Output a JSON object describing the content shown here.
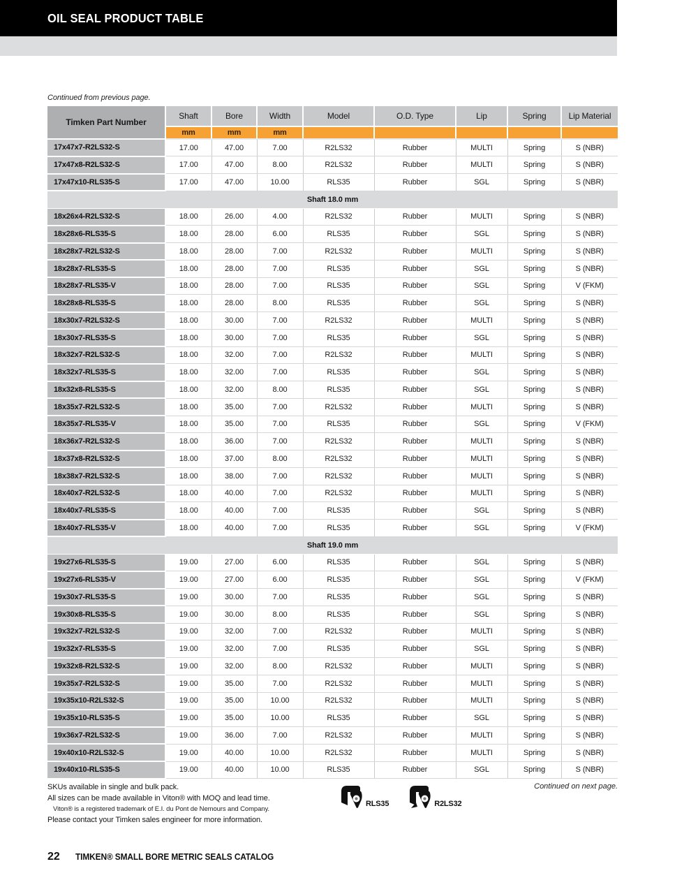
{
  "page": {
    "header_title": "OIL SEAL PRODUCT TABLE",
    "continued_from": "Continued from previous page.",
    "continued_next": "Continued on next page.",
    "page_number": "22",
    "catalog_title": "TIMKEN® SMALL BORE METRIC SEALS CATALOG"
  },
  "colors": {
    "accent_orange": "#F5A134",
    "header_bar_black": "#000000",
    "header_band_gray": "#DCDDDE",
    "column_header_gray": "#C8C9CB",
    "part_header_gray": "#AEAFB1",
    "part_cell_gray": "#BFC0C2",
    "section_row_gray": "#D9DADC"
  },
  "table": {
    "columns": [
      "Timken Part Number",
      "Shaft",
      "Bore",
      "Width",
      "Model",
      "O.D. Type",
      "Lip",
      "Spring",
      "Lip Material"
    ],
    "units": [
      "mm",
      "mm",
      "mm"
    ],
    "rows": [
      {
        "type": "data",
        "cells": [
          "17x47x7-R2LS32-S",
          "17.00",
          "47.00",
          "7.00",
          "R2LS32",
          "Rubber",
          "MULTI",
          "Spring",
          "S (NBR)"
        ]
      },
      {
        "type": "data",
        "cells": [
          "17x47x8-R2LS32-S",
          "17.00",
          "47.00",
          "8.00",
          "R2LS32",
          "Rubber",
          "MULTI",
          "Spring",
          "S (NBR)"
        ]
      },
      {
        "type": "data",
        "cells": [
          "17x47x10-RLS35-S",
          "17.00",
          "47.00",
          "10.00",
          "RLS35",
          "Rubber",
          "SGL",
          "Spring",
          "S (NBR)"
        ]
      },
      {
        "type": "section",
        "label": "Shaft 18.0 mm"
      },
      {
        "type": "data",
        "cells": [
          "18x26x4-R2LS32-S",
          "18.00",
          "26.00",
          "4.00",
          "R2LS32",
          "Rubber",
          "MULTI",
          "Spring",
          "S (NBR)"
        ]
      },
      {
        "type": "data",
        "cells": [
          "18x28x6-RLS35-S",
          "18.00",
          "28.00",
          "6.00",
          "RLS35",
          "Rubber",
          "SGL",
          "Spring",
          "S (NBR)"
        ]
      },
      {
        "type": "data",
        "cells": [
          "18x28x7-R2LS32-S",
          "18.00",
          "28.00",
          "7.00",
          "R2LS32",
          "Rubber",
          "MULTI",
          "Spring",
          "S (NBR)"
        ]
      },
      {
        "type": "data",
        "cells": [
          "18x28x7-RLS35-S",
          "18.00",
          "28.00",
          "7.00",
          "RLS35",
          "Rubber",
          "SGL",
          "Spring",
          "S (NBR)"
        ]
      },
      {
        "type": "data",
        "cells": [
          "18x28x7-RLS35-V",
          "18.00",
          "28.00",
          "7.00",
          "RLS35",
          "Rubber",
          "SGL",
          "Spring",
          "V (FKM)"
        ]
      },
      {
        "type": "data",
        "cells": [
          "18x28x8-RLS35-S",
          "18.00",
          "28.00",
          "8.00",
          "RLS35",
          "Rubber",
          "SGL",
          "Spring",
          "S (NBR)"
        ]
      },
      {
        "type": "data",
        "cells": [
          "18x30x7-R2LS32-S",
          "18.00",
          "30.00",
          "7.00",
          "R2LS32",
          "Rubber",
          "MULTI",
          "Spring",
          "S (NBR)"
        ]
      },
      {
        "type": "data",
        "cells": [
          "18x30x7-RLS35-S",
          "18.00",
          "30.00",
          "7.00",
          "RLS35",
          "Rubber",
          "SGL",
          "Spring",
          "S (NBR)"
        ]
      },
      {
        "type": "data",
        "cells": [
          "18x32x7-R2LS32-S",
          "18.00",
          "32.00",
          "7.00",
          "R2LS32",
          "Rubber",
          "MULTI",
          "Spring",
          "S (NBR)"
        ]
      },
      {
        "type": "data",
        "cells": [
          "18x32x7-RLS35-S",
          "18.00",
          "32.00",
          "7.00",
          "RLS35",
          "Rubber",
          "SGL",
          "Spring",
          "S (NBR)"
        ]
      },
      {
        "type": "data",
        "cells": [
          "18x32x8-RLS35-S",
          "18.00",
          "32.00",
          "8.00",
          "RLS35",
          "Rubber",
          "SGL",
          "Spring",
          "S (NBR)"
        ]
      },
      {
        "type": "data",
        "cells": [
          "18x35x7-R2LS32-S",
          "18.00",
          "35.00",
          "7.00",
          "R2LS32",
          "Rubber",
          "MULTI",
          "Spring",
          "S (NBR)"
        ]
      },
      {
        "type": "data",
        "cells": [
          "18x35x7-RLS35-V",
          "18.00",
          "35.00",
          "7.00",
          "RLS35",
          "Rubber",
          "SGL",
          "Spring",
          "V (FKM)"
        ]
      },
      {
        "type": "data",
        "cells": [
          "18x36x7-R2LS32-S",
          "18.00",
          "36.00",
          "7.00",
          "R2LS32",
          "Rubber",
          "MULTI",
          "Spring",
          "S (NBR)"
        ]
      },
      {
        "type": "data",
        "cells": [
          "18x37x8-R2LS32-S",
          "18.00",
          "37.00",
          "8.00",
          "R2LS32",
          "Rubber",
          "MULTI",
          "Spring",
          "S (NBR)"
        ]
      },
      {
        "type": "data",
        "cells": [
          "18x38x7-R2LS32-S",
          "18.00",
          "38.00",
          "7.00",
          "R2LS32",
          "Rubber",
          "MULTI",
          "Spring",
          "S (NBR)"
        ]
      },
      {
        "type": "data",
        "cells": [
          "18x40x7-R2LS32-S",
          "18.00",
          "40.00",
          "7.00",
          "R2LS32",
          "Rubber",
          "MULTI",
          "Spring",
          "S (NBR)"
        ]
      },
      {
        "type": "data",
        "cells": [
          "18x40x7-RLS35-S",
          "18.00",
          "40.00",
          "7.00",
          "RLS35",
          "Rubber",
          "SGL",
          "Spring",
          "S (NBR)"
        ]
      },
      {
        "type": "data",
        "cells": [
          "18x40x7-RLS35-V",
          "18.00",
          "40.00",
          "7.00",
          "RLS35",
          "Rubber",
          "SGL",
          "Spring",
          "V (FKM)"
        ]
      },
      {
        "type": "section",
        "label": "Shaft 19.0 mm"
      },
      {
        "type": "data",
        "cells": [
          "19x27x6-RLS35-S",
          "19.00",
          "27.00",
          "6.00",
          "RLS35",
          "Rubber",
          "SGL",
          "Spring",
          "S (NBR)"
        ]
      },
      {
        "type": "data",
        "cells": [
          "19x27x6-RLS35-V",
          "19.00",
          "27.00",
          "6.00",
          "RLS35",
          "Rubber",
          "SGL",
          "Spring",
          "V (FKM)"
        ]
      },
      {
        "type": "data",
        "cells": [
          "19x30x7-RLS35-S",
          "19.00",
          "30.00",
          "7.00",
          "RLS35",
          "Rubber",
          "SGL",
          "Spring",
          "S (NBR)"
        ]
      },
      {
        "type": "data",
        "cells": [
          "19x30x8-RLS35-S",
          "19.00",
          "30.00",
          "8.00",
          "RLS35",
          "Rubber",
          "SGL",
          "Spring",
          "S (NBR)"
        ]
      },
      {
        "type": "data",
        "cells": [
          "19x32x7-R2LS32-S",
          "19.00",
          "32.00",
          "7.00",
          "R2LS32",
          "Rubber",
          "MULTI",
          "Spring",
          "S (NBR)"
        ]
      },
      {
        "type": "data",
        "cells": [
          "19x32x7-RLS35-S",
          "19.00",
          "32.00",
          "7.00",
          "RLS35",
          "Rubber",
          "SGL",
          "Spring",
          "S (NBR)"
        ]
      },
      {
        "type": "data",
        "cells": [
          "19x32x8-R2LS32-S",
          "19.00",
          "32.00",
          "8.00",
          "R2LS32",
          "Rubber",
          "MULTI",
          "Spring",
          "S (NBR)"
        ]
      },
      {
        "type": "data",
        "cells": [
          "19x35x7-R2LS32-S",
          "19.00",
          "35.00",
          "7.00",
          "R2LS32",
          "Rubber",
          "MULTI",
          "Spring",
          "S (NBR)"
        ]
      },
      {
        "type": "data",
        "cells": [
          "19x35x10-R2LS32-S",
          "19.00",
          "35.00",
          "10.00",
          "R2LS32",
          "Rubber",
          "MULTI",
          "Spring",
          "S (NBR)"
        ]
      },
      {
        "type": "data",
        "cells": [
          "19x35x10-RLS35-S",
          "19.00",
          "35.00",
          "10.00",
          "RLS35",
          "Rubber",
          "SGL",
          "Spring",
          "S (NBR)"
        ]
      },
      {
        "type": "data",
        "cells": [
          "19x36x7-R2LS32-S",
          "19.00",
          "36.00",
          "7.00",
          "R2LS32",
          "Rubber",
          "MULTI",
          "Spring",
          "S (NBR)"
        ]
      },
      {
        "type": "data",
        "cells": [
          "19x40x10-R2LS32-S",
          "19.00",
          "40.00",
          "10.00",
          "R2LS32",
          "Rubber",
          "MULTI",
          "Spring",
          "S (NBR)"
        ]
      },
      {
        "type": "data",
        "cells": [
          "19x40x10-RLS35-S",
          "19.00",
          "40.00",
          "10.00",
          "RLS35",
          "Rubber",
          "SGL",
          "Spring",
          "S (NBR)"
        ]
      }
    ]
  },
  "footnotes": {
    "line1": "SKUs available in single and bulk pack.",
    "line2": "All sizes can be made available in Viton® with MOQ and lead time.",
    "line3": "Viton® is a registered trademark of E.I. du Pont de Nemours and Company.",
    "line4": "Please contact your Timken sales engineer for more information."
  },
  "legend": {
    "items": [
      {
        "icon": "rls35-seal-icon",
        "label": "RLS35"
      },
      {
        "icon": "r2ls32-seal-icon",
        "label": "R2LS32"
      }
    ]
  }
}
